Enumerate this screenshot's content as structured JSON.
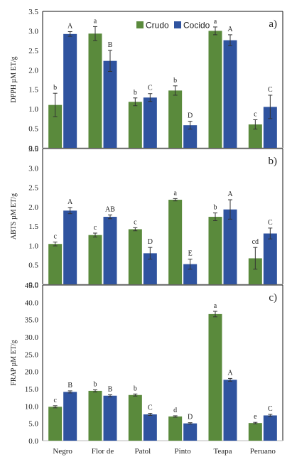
{
  "colors": {
    "crudo": "#5a8a3c",
    "cocido": "#2f539f",
    "error": "#333333",
    "axis": "#333333"
  },
  "legend": [
    "Crudo",
    "Cocido"
  ],
  "chart_data": [
    {
      "type": "bar",
      "panel_label": "a)",
      "ylabel": "DPPH µM ET/g",
      "ylim": [
        0,
        3.5
      ],
      "yticks": [
        "0.0",
        "0.5",
        "1.0",
        "1.5",
        "2.0",
        "2.5",
        "3.0",
        "3.5"
      ],
      "categories": [
        "Negro",
        "Flor de",
        "Patol",
        "Pinto",
        "Teapa",
        "Peruano"
      ],
      "series": [
        {
          "name": "Crudo",
          "values": [
            1.1,
            2.93,
            1.18,
            1.47,
            3.0,
            0.6
          ],
          "errors": [
            0.3,
            0.18,
            0.1,
            0.12,
            0.1,
            0.12
          ],
          "labels": [
            "b",
            "a",
            "b",
            "b",
            "a",
            "c"
          ]
        },
        {
          "name": "Cocido",
          "values": [
            2.92,
            2.23,
            1.29,
            0.58,
            2.76,
            1.05
          ],
          "errors": [
            0.06,
            0.27,
            0.1,
            0.1,
            0.14,
            0.3
          ],
          "labels": [
            "A",
            "B",
            "C",
            "D",
            "A",
            "C"
          ]
        }
      ],
      "legend_position": "top-center"
    },
    {
      "type": "bar",
      "panel_label": "b)",
      "ylabel": "ABTS µM ET/g",
      "ylim": [
        0,
        3.5
      ],
      "yticks": [
        "0.0",
        "0.5",
        "1.0",
        "1.5",
        "2.0",
        "2.5",
        "3.0",
        "3.5"
      ],
      "categories": [
        "Negro",
        "Flor de",
        "Patol",
        "Pinto",
        "Teapa",
        "Peruano"
      ],
      "series": [
        {
          "name": "Crudo",
          "values": [
            1.04,
            1.27,
            1.42,
            2.18,
            1.74,
            0.67
          ],
          "errors": [
            0.05,
            0.05,
            0.04,
            0.03,
            0.1,
            0.28
          ],
          "labels": [
            "c",
            "c",
            "c",
            "a",
            "b",
            "cd"
          ]
        },
        {
          "name": "Cocido",
          "values": [
            1.9,
            1.74,
            0.8,
            0.52,
            1.93,
            1.31
          ],
          "errors": [
            0.08,
            0.05,
            0.15,
            0.13,
            0.25,
            0.14
          ],
          "labels": [
            "A",
            "AB",
            "D",
            "E",
            "A",
            "C"
          ]
        }
      ]
    },
    {
      "type": "bar",
      "panel_label": "c)",
      "ylabel": "FRAP µM ET/g",
      "ylim": [
        0,
        45
      ],
      "yticks": [
        "0.0",
        "5.0",
        "10.0",
        "15.0",
        "20.0",
        "25.0",
        "30.0",
        "35.0",
        "40.0",
        "45.0"
      ],
      "categories": [
        "Negro",
        "Flor de",
        "Patol",
        "Pinto",
        "Teapa",
        "Peruano"
      ],
      "series": [
        {
          "name": "Crudo",
          "values": [
            9.8,
            14.4,
            13.2,
            7.0,
            36.6,
            5.1
          ],
          "errors": [
            0.3,
            0.3,
            0.3,
            0.2,
            0.8,
            0.2
          ],
          "labels": [
            "c",
            "b",
            "b",
            "d",
            "a",
            "e"
          ]
        },
        {
          "name": "Cocido",
          "values": [
            14.1,
            13.0,
            7.6,
            5.0,
            17.6,
            7.3
          ],
          "errors": [
            0.3,
            0.3,
            0.3,
            0.2,
            0.4,
            0.3
          ],
          "labels": [
            "B",
            "B",
            "C",
            "D",
            "A",
            "C"
          ]
        }
      ]
    }
  ]
}
